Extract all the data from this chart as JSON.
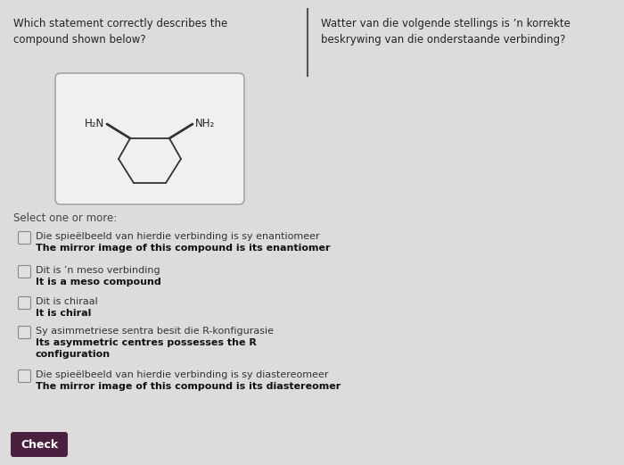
{
  "bg_color": "#dcdcdc",
  "left_title": "Which statement correctly describes the\ncompound shown below?",
  "right_title": "Watter van die volgende stellings is ’n korrekte\nbeskrywing van die onderstaande verbinding?",
  "select_label": "Select one or more:",
  "options": [
    {
      "line1": "Die spieëlbeeld van hierdie verbinding is sy enantiomeer",
      "line2": "The mirror image of this compound is its enantiomer"
    },
    {
      "line1": "Dit is ’n meso verbinding",
      "line2": "It is a meso compound"
    },
    {
      "line1": "Dit is chiraal",
      "line2": "It is chiral"
    },
    {
      "line1": "Sy asimmetriese sentra besit die R-konfigurasie",
      "line2": "Its asymmetric centres possesses the R\nconfiguration"
    },
    {
      "line1": "Die spieëlbeeld van hierdie verbinding is sy diastereomeer",
      "line2": "The mirror image of this compound is its diastereomer"
    }
  ],
  "check_button_color": "#4a2040",
  "check_button_text": "Check",
  "divider_color": "#555555",
  "box_bg": "#f0f0f0",
  "box_border": "#999999",
  "ring_color": "#333333",
  "text_color": "#222222",
  "label_color": "#444444"
}
